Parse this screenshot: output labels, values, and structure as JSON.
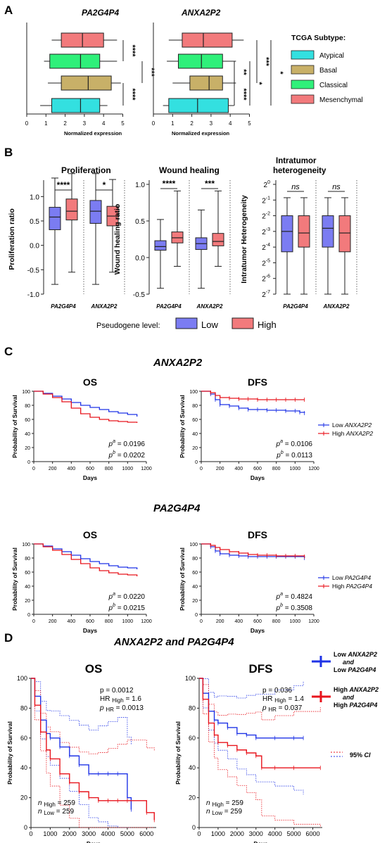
{
  "panels": {
    "A": "A",
    "B": "B",
    "C": "C",
    "D": "D"
  },
  "colors": {
    "atypical": "#33e0e0",
    "basal": "#c8b068",
    "classical": "#2ff07a",
    "mesenchymal": "#f27a7c",
    "low": "#7b7cf2",
    "high": "#f27a7c",
    "km_low": "#1f33e6",
    "km_high": "#e8141c"
  },
  "panelA": {
    "x_label": "Normalized expression",
    "x_ticks": [
      "0",
      "1",
      "2",
      "3",
      "4",
      "5"
    ],
    "legend_title": "TCGA Subtype:",
    "legend": [
      "Atypical",
      "Basal",
      "Classical",
      "Mesenchymal"
    ],
    "plots": [
      {
        "title": "PA2G4P4",
        "boxes": [
          {
            "subtype": "Mesenchymal",
            "whisker_low": 1.3,
            "q1": 1.8,
            "median": 2.9,
            "q3": 4.0,
            "whisker_high": 4.7
          },
          {
            "subtype": "Classical",
            "whisker_low": 0.9,
            "q1": 1.2,
            "median": 2.8,
            "q3": 3.8,
            "whisker_high": 4.7
          },
          {
            "subtype": "Basal",
            "whisker_low": 1.1,
            "q1": 1.8,
            "median": 3.2,
            "q3": 4.4,
            "whisker_high": 4.9
          },
          {
            "subtype": "Atypical",
            "whisker_low": 0.7,
            "q1": 1.3,
            "median": 2.8,
            "q3": 3.8,
            "whisker_high": 4.2
          }
        ],
        "brackets": [
          {
            "label": "****",
            "from": 0,
            "to": 1
          },
          {
            "label": "***",
            "from": 1,
            "to": 2
          },
          {
            "label": "****",
            "from": 2,
            "to": 3
          }
        ]
      },
      {
        "title": "ANXA2P2",
        "boxes": [
          {
            "subtype": "Mesenchymal",
            "whisker_low": 0.8,
            "q1": 1.5,
            "median": 2.6,
            "q3": 4.1,
            "whisker_high": 4.7
          },
          {
            "subtype": "Classical",
            "whisker_low": 0.7,
            "q1": 1.3,
            "median": 2.5,
            "q3": 3.6,
            "whisker_high": 4.3
          },
          {
            "subtype": "Basal",
            "whisker_low": 1.0,
            "q1": 1.9,
            "median": 2.9,
            "q3": 3.6,
            "whisker_high": 4.3
          },
          {
            "subtype": "Atypical",
            "whisker_low": 0.5,
            "q1": 0.8,
            "median": 2.3,
            "q3": 3.9,
            "whisker_high": 4.2
          }
        ],
        "brackets": [
          {
            "label": "**",
            "from": 1,
            "to": 2
          },
          {
            "label": "****",
            "from": 2,
            "to": 3
          },
          {
            "label": "*",
            "from": 1,
            "to": 3
          },
          {
            "label": "***",
            "from": 0,
            "to": 2
          },
          {
            "label": "*",
            "from": 0,
            "to": 3
          }
        ]
      }
    ]
  },
  "panelB": {
    "x_labels": [
      "PA2G4P4",
      "ANXA2P2"
    ],
    "legend_label": "Pseudogene level:",
    "legend": [
      "Low",
      "High"
    ],
    "plots": [
      {
        "title": "Proliferation",
        "ylabel": "Proliferation ratio",
        "ylim": [
          -1.0,
          1.25
        ],
        "yticks": [
          "-1.0",
          "-0.5",
          "0.0",
          "0.5",
          "1.0"
        ],
        "ytick_values": [
          -1.0,
          -0.5,
          0.0,
          0.5,
          1.0
        ],
        "boxes": [
          {
            "level": "Low",
            "min": -0.8,
            "q1": 0.32,
            "median": 0.58,
            "q3": 0.78,
            "max": 1.38
          },
          {
            "level": "High",
            "min": -0.55,
            "q1": 0.52,
            "median": 0.7,
            "q3": 0.95,
            "max": 1.47
          },
          {
            "level": "Low",
            "min": -0.8,
            "q1": 0.45,
            "median": 0.7,
            "q3": 0.92,
            "max": 1.47
          },
          {
            "level": "High",
            "min": -0.55,
            "q1": 0.4,
            "median": 0.6,
            "q3": 0.8,
            "max": 1.35
          }
        ],
        "sig": [
          "****",
          "*"
        ]
      },
      {
        "title": "Wound healing",
        "ylabel": "Wound healing ratio",
        "ylim": [
          -0.5,
          1.0
        ],
        "yticks": [
          "-0.5",
          "0.0",
          "0.5",
          "1.0"
        ],
        "ytick_values": [
          -0.5,
          0.0,
          0.5,
          1.0
        ],
        "boxes": [
          {
            "level": "Low",
            "min": -0.42,
            "q1": 0.1,
            "median": 0.15,
            "q3": 0.23,
            "max": 0.52
          },
          {
            "level": "High",
            "min": -0.12,
            "q1": 0.2,
            "median": 0.27,
            "q3": 0.35,
            "max": 0.91
          },
          {
            "level": "Low",
            "min": -0.42,
            "q1": 0.11,
            "median": 0.19,
            "q3": 0.27,
            "max": 0.65
          },
          {
            "level": "High",
            "min": -0.12,
            "q1": 0.16,
            "median": 0.22,
            "q3": 0.33,
            "max": 0.91
          }
        ],
        "sig": [
          "****",
          "***"
        ]
      },
      {
        "title": "Intratumor heterogeneity",
        "ylabel": "Intratumor Heterogeneity",
        "yticks": [
          "2",
          "2",
          "2",
          "2",
          "2",
          "2",
          "2",
          "2"
        ],
        "ytick_exponents": [
          "0",
          "-1",
          "-2",
          "-3",
          "-4",
          "-5",
          "-6",
          "-7"
        ],
        "ytick_values": [
          0,
          -1,
          -2,
          -3,
          -4,
          -5,
          -6,
          -7
        ],
        "ylim": [
          -7,
          0
        ],
        "boxes": [
          {
            "level": "Low",
            "min": -7,
            "q1": -4.3,
            "median": -3.0,
            "q3": -2.0,
            "max": -0.85
          },
          {
            "level": "High",
            "min": -7,
            "q1": -4.0,
            "median": -3.1,
            "q3": -2.0,
            "max": -0.85
          },
          {
            "level": "Low",
            "min": -7,
            "q1": -4.0,
            "median": -2.8,
            "q3": -2.0,
            "max": -0.85
          },
          {
            "level": "High",
            "min": -7,
            "q1": -4.3,
            "median": -3.1,
            "q3": -2.0,
            "max": -0.85
          }
        ],
        "sig": [
          "ns",
          "ns"
        ]
      }
    ]
  },
  "panelC": {
    "groups": [
      {
        "gene": "ANXA2P2",
        "os": {
          "title": "OS",
          "pa": "0.0196",
          "pb": "0.0202"
        },
        "dfs": {
          "title": "DFS",
          "pa": "0.0106",
          "pb": "0.0113"
        },
        "legend_low": "Low",
        "legend_high": "High"
      },
      {
        "gene": "PA2G4P4",
        "os": {
          "title": "OS",
          "pa": "0.0220",
          "pb": "0.0215"
        },
        "dfs": {
          "title": "DFS",
          "pa": "0.4824",
          "pb": "0.3508"
        },
        "legend_low": "Low",
        "legend_high": "High"
      }
    ],
    "xlabel": "Days",
    "ylabel": "Probability of Survival",
    "x_ticks": [
      "0",
      "200",
      "400",
      "600",
      "800",
      "1000",
      "1200"
    ],
    "y_ticks": [
      "0",
      "20",
      "40",
      "60",
      "80",
      "100"
    ]
  },
  "panelD": {
    "title": "ANXA2P2 and PA2G4P4",
    "xlabel": "Days",
    "ylabel": "Probability of Survival",
    "x_ticks": [
      "0",
      "1000",
      "2000",
      "3000",
      "4000",
      "5000",
      "6000"
    ],
    "y_ticks": [
      "0",
      "20",
      "40",
      "60",
      "80",
      "100"
    ],
    "os": {
      "title": "OS",
      "p": "p = 0.0012",
      "hr": "HR",
      "hr_sub": "High",
      "hr_val": " = 1.6",
      "phr": "p",
      "phr_sub": "HR",
      "phr_val": " = 0.0013",
      "n_high": "n",
      "n_high_sub": "High",
      "n_high_val": " = 259",
      "n_low": "n",
      "n_low_sub": "Low",
      "n_low_val": " = 259"
    },
    "dfs": {
      "title": "DFS",
      "p": "p = 0.036",
      "hr": "HR",
      "hr_sub": "High",
      "hr_val": " = 1.4",
      "phr": "p",
      "phr_sub": "HR",
      "phr_val": " = 0.037",
      "n_high": "n",
      "n_high_sub": "High",
      "n_high_val": " = 259",
      "n_low": "n",
      "n_low_sub": "Low",
      "n_low_val": " = 259"
    },
    "legend": {
      "low_l1": "Low ANXA2P2",
      "low_l2": "and",
      "low_l3": "Low  PA2G4P4",
      "high_l1": "High ANXA2P2",
      "high_l2": "and",
      "high_l3": "High PA2G4P4",
      "ci": "95% CI"
    }
  },
  "chart_data": [
    {
      "type": "box",
      "title": "PA2G4P4",
      "xlabel": "Normalized expression",
      "categories": [
        "Mesenchymal",
        "Classical",
        "Basal",
        "Atypical"
      ],
      "medians": [
        2.9,
        2.8,
        3.2,
        2.8
      ],
      "xlim": [
        0,
        5
      ]
    },
    {
      "type": "box",
      "title": "ANXA2P2",
      "xlabel": "Normalized expression",
      "categories": [
        "Mesenchymal",
        "Classical",
        "Basal",
        "Atypical"
      ],
      "medians": [
        2.6,
        2.5,
        2.9,
        2.3
      ],
      "xlim": [
        0,
        5
      ]
    },
    {
      "type": "box",
      "title": "Proliferation",
      "ylabel": "Proliferation ratio",
      "categories": [
        "PA2G4P4",
        "ANXA2P2"
      ],
      "series": [
        {
          "name": "Low",
          "medians": [
            0.58,
            0.7
          ]
        },
        {
          "name": "High",
          "medians": [
            0.7,
            0.6
          ]
        }
      ]
    },
    {
      "type": "box",
      "title": "Wound healing",
      "ylabel": "Wound healing ratio",
      "categories": [
        "PA2G4P4",
        "ANXA2P2"
      ],
      "series": [
        {
          "name": "Low",
          "medians": [
            0.15,
            0.19
          ]
        },
        {
          "name": "High",
          "medians": [
            0.27,
            0.22
          ]
        }
      ]
    },
    {
      "type": "box",
      "title": "Intratumor heterogeneity",
      "ylabel": "Intratumor Heterogeneity",
      "categories": [
        "PA2G4P4",
        "ANXA2P2"
      ],
      "series": [
        {
          "name": "Low",
          "medians_log2": [
            -3.0,
            -2.8
          ]
        },
        {
          "name": "High",
          "medians_log2": [
            -3.1,
            -3.1
          ]
        }
      ]
    },
    {
      "type": "line",
      "title": "OS",
      "gene": "ANXA2P2",
      "xlabel": "Days",
      "ylabel": "Probability of Survival",
      "xlim": [
        0,
        1200
      ],
      "ylim": [
        0,
        100
      ],
      "series": [
        {
          "name": "Low ANXA2P2",
          "x": [
            0,
            100,
            200,
            300,
            400,
            500,
            600,
            700,
            800,
            900,
            1000,
            1100
          ],
          "y": [
            100,
            97,
            93,
            89,
            84,
            80,
            77,
            74,
            71,
            69,
            67,
            64
          ]
        },
        {
          "name": "High ANXA2P2",
          "x": [
            0,
            100,
            200,
            300,
            400,
            500,
            600,
            700,
            800,
            900,
            1000,
            1100
          ],
          "y": [
            100,
            96,
            91,
            85,
            76,
            68,
            63,
            60,
            58,
            57,
            56,
            55
          ]
        }
      ]
    },
    {
      "type": "line",
      "title": "DFS",
      "gene": "ANXA2P2",
      "xlabel": "Days",
      "ylabel": "Probability of Survival",
      "xlim": [
        0,
        1200
      ],
      "ylim": [
        0,
        100
      ],
      "series": [
        {
          "name": "Low ANXA2P2",
          "x": [
            0,
            100,
            150,
            200,
            300,
            400,
            500,
            600,
            700,
            800,
            900,
            1000,
            1050,
            1100
          ],
          "y": [
            100,
            96,
            88,
            81,
            79,
            76,
            74,
            74,
            73,
            73,
            72,
            72,
            70,
            69
          ]
        },
        {
          "name": "High ANXA2P2",
          "x": [
            0,
            100,
            150,
            200,
            300,
            400,
            500,
            600,
            700,
            800,
            900,
            1000,
            1100
          ],
          "y": [
            100,
            98,
            94,
            91,
            90,
            89,
            89,
            88,
            88,
            88,
            88,
            88,
            88
          ]
        }
      ]
    },
    {
      "type": "line",
      "title": "OS",
      "gene": "PA2G4P4",
      "xlabel": "Days",
      "ylabel": "Probability of Survival",
      "xlim": [
        0,
        1200
      ],
      "ylim": [
        0,
        100
      ],
      "series": [
        {
          "name": "Low PA2G4P4",
          "x": [
            0,
            100,
            200,
            300,
            400,
            500,
            600,
            700,
            800,
            900,
            1000,
            1100
          ],
          "y": [
            100,
            97,
            93,
            89,
            84,
            79,
            75,
            72,
            69,
            67,
            66,
            64
          ]
        },
        {
          "name": "High PA2G4P4",
          "x": [
            0,
            100,
            200,
            300,
            400,
            500,
            600,
            700,
            800,
            900,
            1000,
            1100
          ],
          "y": [
            100,
            96,
            91,
            85,
            78,
            72,
            66,
            62,
            59,
            57,
            56,
            54
          ]
        }
      ]
    },
    {
      "type": "line",
      "title": "DFS",
      "gene": "PA2G4P4",
      "xlabel": "Days",
      "ylabel": "Probability of Survival",
      "xlim": [
        0,
        1200
      ],
      "ylim": [
        0,
        100
      ],
      "series": [
        {
          "name": "Low PA2G4P4",
          "x": [
            0,
            100,
            150,
            200,
            300,
            400,
            500,
            600,
            700,
            800,
            900,
            1000,
            1100
          ],
          "y": [
            100,
            96,
            90,
            86,
            84,
            83,
            82,
            82,
            82,
            82,
            82,
            82,
            80
          ]
        },
        {
          "name": "High PA2G4P4",
          "x": [
            0,
            100,
            150,
            200,
            300,
            400,
            500,
            600,
            700,
            800,
            900,
            1000,
            1100
          ],
          "y": [
            100,
            98,
            95,
            92,
            89,
            87,
            85,
            84,
            84,
            83,
            83,
            83,
            82
          ]
        }
      ]
    },
    {
      "type": "line",
      "title": "OS",
      "gene": "ANXA2P2 and PA2G4P4",
      "xlabel": "Days",
      "ylabel": "Probability of Survival",
      "xlim": [
        0,
        6500
      ],
      "ylim": [
        0,
        100
      ],
      "series": [
        {
          "name": "Low ANXA2P2 and Low PA2G4P4",
          "x": [
            0,
            200,
            500,
            800,
            1000,
            1500,
            2000,
            2500,
            3000,
            3500,
            4000,
            4500,
            5000,
            5200
          ],
          "y": [
            100,
            88,
            72,
            63,
            60,
            54,
            48,
            42,
            36,
            36,
            36,
            36,
            20,
            12
          ]
        },
        {
          "name": "High ANXA2P2 and High PA2G4P4",
          "x": [
            0,
            200,
            500,
            800,
            1000,
            1500,
            2000,
            2500,
            3000,
            3500,
            4000,
            4500,
            5000,
            6000,
            6400
          ],
          "y": [
            100,
            82,
            64,
            52,
            46,
            36,
            30,
            24,
            20,
            18,
            18,
            18,
            18,
            10,
            5
          ]
        }
      ]
    },
    {
      "type": "line",
      "title": "DFS",
      "gene": "ANXA2P2 and PA2G4P4",
      "xlabel": "Days",
      "ylabel": "Probability of Survival",
      "xlim": [
        0,
        6500
      ],
      "ylim": [
        0,
        100
      ],
      "series": [
        {
          "name": "Low ANXA2P2 and Low PA2G4P4",
          "x": [
            0,
            200,
            500,
            800,
            1000,
            1500,
            2000,
            2500,
            3000,
            4000,
            5000,
            5500
          ],
          "y": [
            100,
            90,
            78,
            72,
            70,
            67,
            63,
            62,
            60,
            60,
            60,
            60
          ]
        },
        {
          "name": "High ANXA2P2 and High PA2G4P4",
          "x": [
            0,
            200,
            500,
            800,
            1000,
            1500,
            2000,
            2500,
            3000,
            3300,
            4000,
            5000,
            6400
          ],
          "y": [
            100,
            86,
            70,
            62,
            57,
            55,
            52,
            50,
            48,
            40,
            40,
            40,
            40
          ]
        }
      ]
    }
  ]
}
